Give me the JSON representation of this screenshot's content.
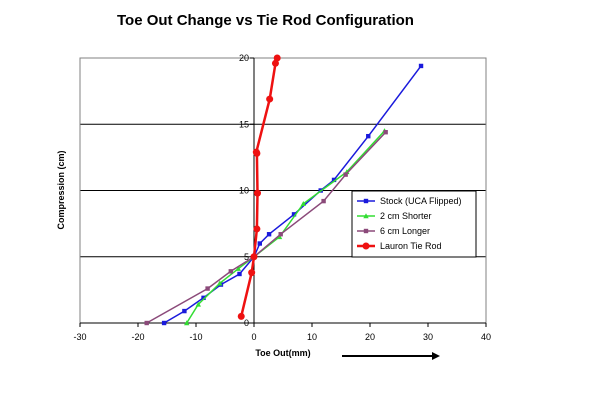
{
  "chart_data": {
    "type": "line",
    "title": "Toe Out Change vs Tie Rod Configuration",
    "xlabel": "Toe Out(mm)",
    "ylabel": "Compression (cm)",
    "xlim": [
      -30,
      40
    ],
    "ylim": [
      0,
      20
    ],
    "xticks": [
      -30,
      -20,
      -10,
      0,
      10,
      20,
      30,
      40
    ],
    "yticks": [
      0,
      5,
      10,
      15,
      20
    ],
    "grid": "horizontal",
    "legend_position": "right",
    "series": [
      {
        "name": "Stock (UCA Flipped)",
        "color": "#1a1adc",
        "marker": "square",
        "x": [
          -15.5,
          -12.0,
          -8.7,
          -5.7,
          -2.5,
          0,
          1.0,
          2.6,
          6.9,
          11.5,
          13.8,
          19.7,
          28.8
        ],
        "y": [
          0,
          0.9,
          1.9,
          2.9,
          3.7,
          5.0,
          6.0,
          6.7,
          8.2,
          10.0,
          10.8,
          14.1,
          19.4
        ]
      },
      {
        "name": "2 cm Shorter",
        "color": "#33dd33",
        "marker": "triangle",
        "x": [
          -11.6,
          -9.6,
          -5.9,
          -2.7,
          0,
          4.4,
          8.5,
          16.0,
          22.5
        ],
        "y": [
          0,
          1.4,
          3.0,
          4.1,
          5.0,
          6.5,
          9.0,
          11.4,
          14.5
        ]
      },
      {
        "name": "6 cm Longer",
        "color": "#8b4a7a",
        "marker": "square",
        "x": [
          -18.5,
          -8.0,
          -4.0,
          0,
          4.6,
          12.0,
          15.8,
          22.7
        ],
        "y": [
          0,
          2.6,
          3.9,
          5.0,
          6.7,
          9.2,
          11.2,
          14.4
        ]
      },
      {
        "name": "Lauron Tie Rod",
        "color": "#ee1111",
        "marker": "circle",
        "x": [
          -2.2,
          -0.4,
          0,
          0.5,
          0.6,
          0.5,
          0.4,
          2.7,
          3.7,
          4.0
        ],
        "y": [
          0.5,
          3.8,
          5.0,
          7.1,
          9.8,
          12.8,
          12.9,
          16.9,
          19.6,
          20.0
        ]
      }
    ]
  }
}
